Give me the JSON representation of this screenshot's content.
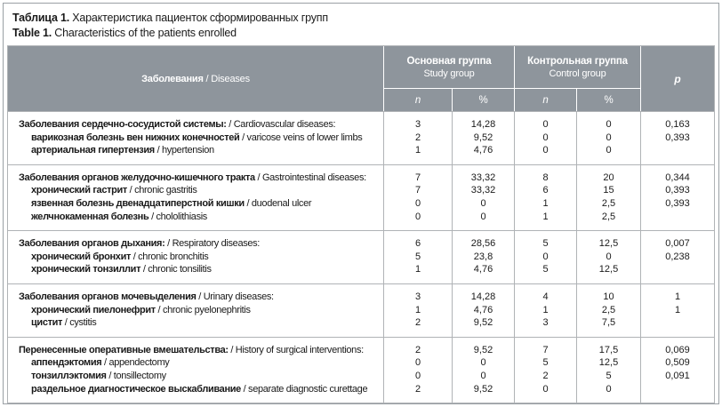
{
  "colors": {
    "header_bg": "#8e959c",
    "grid_line": "#b0b3b6",
    "header_text": "#ffffff"
  },
  "title": {
    "ru_bold": "Таблица 1.",
    "ru_rest": " Характеристика пациенток сформированных групп",
    "en_bold": "Table 1.",
    "en_rest": " Characteristics of the patients enrolled"
  },
  "table": {
    "disease_header": {
      "bold": "Заболевания",
      "rest": " / Diseases"
    },
    "group_headers": [
      {
        "ru": "Основная группа",
        "en": "Study group"
      },
      {
        "ru": "Контрольная группа",
        "en": "Control group"
      }
    ],
    "p_label": "p",
    "sub_headers": [
      "n",
      "%",
      "n",
      "%"
    ],
    "groups": [
      {
        "rows": [
          {
            "ru": "Заболевания сердечно-сосудистой системы:",
            "en": " / Cardiovascular diseases:",
            "indent": false,
            "n1": "3",
            "pct1": "14,28",
            "n2": "0",
            "pct2": "0",
            "p": ""
          },
          {
            "ru": "варикозная болезнь вен нижних конечностей",
            "en": " / varicose veins of lower limbs",
            "indent": true,
            "n1": "2",
            "pct1": "9,52",
            "n2": "0",
            "pct2": "0",
            "p": "0,163"
          },
          {
            "ru": "артериальная гипертензия",
            "en": " / hypertension",
            "indent": true,
            "n1": "1",
            "pct1": "4,76",
            "n2": "0",
            "pct2": "0",
            "p": "0,393"
          }
        ]
      },
      {
        "rows": [
          {
            "ru": "Заболевания органов желудочно-кишечного тракта",
            "en": " / Gastrointestinal diseases:",
            "indent": false,
            "n1": "7",
            "pct1": "33,32",
            "n2": "8",
            "pct2": "20",
            "p": ""
          },
          {
            "ru": "хронический гастрит",
            "en": " / chronic gastritis",
            "indent": true,
            "n1": "7",
            "pct1": "33,32",
            "n2": "6",
            "pct2": "15",
            "p": "0,344"
          },
          {
            "ru": "язвенная болезнь двенадцатиперстной кишки",
            "en": " / duodenal ulcer",
            "indent": true,
            "n1": "0",
            "pct1": "0",
            "n2": "1",
            "pct2": "2,5",
            "p": "0,393"
          },
          {
            "ru": "желчнокаменная болезнь",
            "en": " / chololithiasis",
            "indent": true,
            "n1": "0",
            "pct1": "0",
            "n2": "1",
            "pct2": "2,5",
            "p": "0,393"
          }
        ]
      },
      {
        "rows": [
          {
            "ru": "Заболевания органов дыхания:",
            "en": " / Respiratory diseases:",
            "indent": false,
            "n1": "6",
            "pct1": "28,56",
            "n2": "5",
            "pct2": "12,5",
            "p": ""
          },
          {
            "ru": "хронический бронхит",
            "en": " / chronic bronchitis",
            "indent": true,
            "n1": "5",
            "pct1": "23,8",
            "n2": "0",
            "pct2": "0",
            "p": "0,007"
          },
          {
            "ru": "хронический тонзиллит",
            "en": " / chronic tonsilitis",
            "indent": true,
            "n1": "1",
            "pct1": "4,76",
            "n2": "5",
            "pct2": "12,5",
            "p": "0,238"
          }
        ]
      },
      {
        "rows": [
          {
            "ru": "Заболевания органов мочевыделения",
            "en": " / Urinary diseases:",
            "indent": false,
            "n1": "3",
            "pct1": "14,28",
            "n2": "4",
            "pct2": "10",
            "p": ""
          },
          {
            "ru": "хронический пиелонефрит",
            "en": " / chronic pyelonephritis",
            "indent": true,
            "n1": "1",
            "pct1": "4,76",
            "n2": "1",
            "pct2": "2,5",
            "p": "1"
          },
          {
            "ru": "цистит",
            "en": " / cystitis",
            "indent": true,
            "n1": "2",
            "pct1": "9,52",
            "n2": "3",
            "pct2": "7,5",
            "p": "1"
          }
        ]
      },
      {
        "rows": [
          {
            "ru": "Перенесенные оперативные вмешательства:",
            "en": " / History of surgical interventions:",
            "indent": false,
            "n1": "2",
            "pct1": "9,52",
            "n2": "7",
            "pct2": "17,5",
            "p": ""
          },
          {
            "ru": "аппендэктомия",
            "en": " / appendectomy",
            "indent": true,
            "n1": "0",
            "pct1": "0",
            "n2": "5",
            "pct2": "12,5",
            "p": "0,069"
          },
          {
            "ru": "тонзиллэктомия",
            "en": " / tonsillectomy",
            "indent": true,
            "n1": "0",
            "pct1": "0",
            "n2": "2",
            "pct2": "5",
            "p": "0,509"
          },
          {
            "ru": "раздельное диагностическое выскабливание",
            "en": " / separate diagnostic curettage",
            "indent": true,
            "n1": "2",
            "pct1": "9,52",
            "n2": "0",
            "pct2": "0",
            "p": "0,091"
          }
        ]
      }
    ]
  }
}
